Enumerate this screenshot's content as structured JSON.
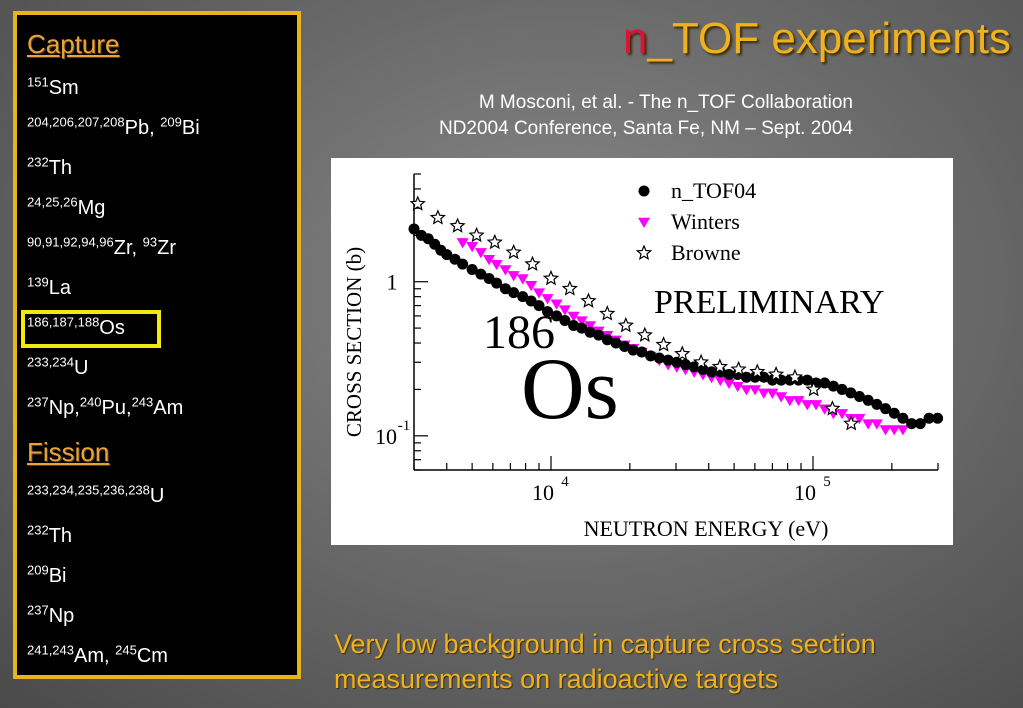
{
  "slide": {
    "title_n": "n",
    "title_rest": "_TOF experiments",
    "ref_line1": "M Mosconi, et al. - The n_TOF Collaboration",
    "ref_line2": "ND2004 Conference, Santa Fe, NM – Sept. 2004",
    "bottom_line1": "Very low background in capture cross section",
    "bottom_line2": "measurements on radioactive targets"
  },
  "sidebar": {
    "capture_heading": "Capture",
    "fission_heading": "Fission",
    "capture_items": [
      {
        "sup1": "151",
        "el1": "Sm",
        "sep": "",
        "sup2": "",
        "el2": ""
      },
      {
        "sup1": "204,206,207,208",
        "el1": "Pb, ",
        "sep": "",
        "sup2": "209",
        "el2": "Bi"
      },
      {
        "sup1": "232",
        "el1": "Th",
        "sep": "",
        "sup2": "",
        "el2": ""
      },
      {
        "sup1": "24,25,26",
        "el1": "Mg",
        "sep": "",
        "sup2": "",
        "el2": ""
      },
      {
        "sup1": "90,91,92,94,96",
        "el1": "Zr, ",
        "sep": "",
        "sup2": "93",
        "el2": "Zr"
      },
      {
        "sup1": "139",
        "el1": "La",
        "sep": "",
        "sup2": "",
        "el2": ""
      },
      {
        "sup1": "186,187,188",
        "el1": "Os",
        "sep": "",
        "sup2": "",
        "el2": ""
      },
      {
        "sup1": "233,234",
        "el1": "U",
        "sep": "",
        "sup2": "",
        "el2": ""
      },
      {
        "sup1": "237",
        "el1": "Np,",
        "sep": "",
        "sup2": "240",
        "el2": "Pu,",
        "sup3": "243",
        "el3": "Am"
      }
    ],
    "fission_items": [
      {
        "sup1": "233,234,235,236,238",
        "el1": "U",
        "sup2": "",
        "el2": ""
      },
      {
        "sup1": "232",
        "el1": "Th",
        "sup2": "",
        "el2": ""
      },
      {
        "sup1": "209",
        "el1": "Bi",
        "sup2": "",
        "el2": ""
      },
      {
        "sup1": "237",
        "el1": "Np",
        "sup2": "",
        "el2": ""
      },
      {
        "sup1": "241,243",
        "el1": "Am, ",
        "sup2": "245",
        "el2": "Cm"
      }
    ]
  },
  "chart_data": {
    "type": "scatter",
    "xlabel": "NEUTRON ENERGY (eV)",
    "ylabel": "CROSS SECTION (b)",
    "x_log": true,
    "y_log": true,
    "xlim": [
      3000,
      300000
    ],
    "ylim": [
      0.06,
      5
    ],
    "x_ticks": [
      {
        "base": "10",
        "exp": "4",
        "value": 10000
      },
      {
        "base": "10",
        "exp": "5",
        "value": 100000
      }
    ],
    "y_ticks": [
      {
        "label": "1",
        "exp": "",
        "value": 1
      },
      {
        "label": "10",
        "exp": "-1",
        "value": 0.1
      }
    ],
    "annotation_big": "186",
    "annotation_element": "Os",
    "annotation_preliminary": "PRELIMINARY",
    "colors": {
      "n_TOF04": "#000000",
      "Winters": "#ff00ff",
      "Browne": "#000000"
    },
    "series": [
      {
        "name": "n_TOF04",
        "marker": "circle",
        "x": [
          3000,
          3200,
          3400,
          3600,
          3800,
          4000,
          4300,
          4600,
          5000,
          5400,
          5800,
          6200,
          6700,
          7200,
          7800,
          8400,
          9000,
          9700,
          10500,
          11300,
          12200,
          13100,
          14100,
          15200,
          16400,
          17700,
          19100,
          20600,
          22200,
          24000,
          25900,
          28000,
          30200,
          32600,
          35200,
          38000,
          41000,
          44300,
          47800,
          51600,
          55700,
          60100,
          64900,
          70000,
          75600,
          81600,
          88100,
          95100,
          102700,
          110800,
          119600,
          129100,
          139400,
          150400,
          162400,
          175300,
          189200,
          204200,
          220400,
          237900,
          256800,
          277200,
          299000
        ],
        "y": [
          2.2,
          2.0,
          1.9,
          1.75,
          1.6,
          1.5,
          1.4,
          1.3,
          1.2,
          1.12,
          1.05,
          0.98,
          0.9,
          0.85,
          0.8,
          0.75,
          0.7,
          0.64,
          0.6,
          0.56,
          0.52,
          0.5,
          0.47,
          0.45,
          0.42,
          0.4,
          0.38,
          0.36,
          0.35,
          0.33,
          0.32,
          0.31,
          0.3,
          0.29,
          0.28,
          0.27,
          0.26,
          0.26,
          0.25,
          0.25,
          0.24,
          0.24,
          0.24,
          0.23,
          0.23,
          0.23,
          0.23,
          0.23,
          0.22,
          0.22,
          0.21,
          0.2,
          0.19,
          0.18,
          0.17,
          0.16,
          0.15,
          0.14,
          0.13,
          0.12,
          0.12,
          0.13,
          0.13
        ]
      },
      {
        "name": "Winters",
        "marker": "triangle-down",
        "x": [
          4600,
          5000,
          5400,
          5800,
          6200,
          6700,
          7200,
          7800,
          8400,
          9000,
          9700,
          10500,
          11300,
          12200,
          13100,
          14100,
          15200,
          16400,
          17700,
          19100,
          20600,
          22200,
          24000,
          25900,
          28000,
          30200,
          32600,
          35200,
          38000,
          41000,
          44300,
          47800,
          51600,
          55700,
          60100,
          64900,
          70000,
          75600,
          81600,
          88100,
          95100,
          102700,
          110800,
          119600,
          129100,
          139400,
          150400,
          162400,
          175300,
          189200,
          204200,
          220400
        ],
        "y": [
          1.8,
          1.7,
          1.55,
          1.4,
          1.3,
          1.2,
          1.1,
          1.05,
          0.95,
          0.85,
          0.78,
          0.72,
          0.66,
          0.6,
          0.56,
          0.52,
          0.48,
          0.45,
          0.42,
          0.39,
          0.37,
          0.35,
          0.33,
          0.31,
          0.29,
          0.28,
          0.27,
          0.26,
          0.25,
          0.24,
          0.23,
          0.22,
          0.21,
          0.2,
          0.2,
          0.19,
          0.19,
          0.18,
          0.17,
          0.17,
          0.16,
          0.16,
          0.15,
          0.14,
          0.14,
          0.13,
          0.13,
          0.12,
          0.12,
          0.11,
          0.11,
          0.11
        ]
      },
      {
        "name": "Browne",
        "marker": "star",
        "x": [
          3100,
          3700,
          4400,
          5200,
          6100,
          7200,
          8500,
          10000,
          11800,
          13900,
          16400,
          19300,
          22800,
          26900,
          31700,
          37400,
          44100,
          52000,
          61300,
          72300,
          85300,
          100600,
          118600,
          139900
        ],
        "y": [
          3.2,
          2.6,
          2.3,
          2.0,
          1.8,
          1.55,
          1.3,
          1.05,
          0.9,
          0.75,
          0.62,
          0.52,
          0.45,
          0.39,
          0.34,
          0.3,
          0.28,
          0.27,
          0.26,
          0.25,
          0.24,
          0.2,
          0.15,
          0.12
        ]
      }
    ]
  }
}
